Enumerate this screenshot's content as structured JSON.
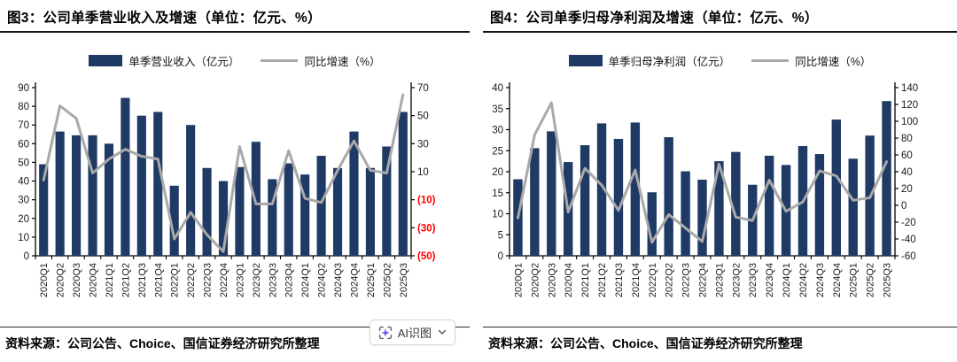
{
  "figures": [
    {
      "source": "资料来源：公司公告、Choice、国信证券经济研究所整理"
    },
    {
      "source": "资料来源：公司公告、Choice、国信证券经济研究所整理"
    }
  ],
  "ai_button": {
    "label": "AI识图",
    "icon": "ai-scan-sparkle-icon",
    "chevron_icon": "chevron-down-icon",
    "accent": "#7a4ff5"
  },
  "colors": {
    "bar": "#1f3a64",
    "line": "#a9a9a9",
    "axis": "#000000",
    "negative_tick_red": "#ff0000",
    "tick_text": "#1a1a1a"
  },
  "chart_data": [
    {
      "type": "bar",
      "subtype": "bar+line-combo",
      "title": "图3：公司单季营业收入及增速（单位：亿元、%）",
      "grid": false,
      "legend_position": "top",
      "categories": [
        "2020Q1",
        "2020Q2",
        "2020Q3",
        "2020Q4",
        "2021Q1",
        "2021Q2",
        "2021Q3",
        "2021Q4",
        "2022Q1",
        "2022Q2",
        "2022Q3",
        "2022Q4",
        "2023Q1",
        "2023Q2",
        "2023Q3",
        "2023Q4",
        "2024Q1",
        "2024Q2",
        "2024Q3",
        "2024Q4",
        "2025Q1",
        "2025Q2",
        "2025Q3"
      ],
      "series": [
        {
          "name": "单季营业收入（亿元）",
          "kind": "bar",
          "axis": "left",
          "values": [
            49,
            66.5,
            64.5,
            64.5,
            60,
            84.5,
            75,
            77,
            37.5,
            70,
            47,
            40,
            47.5,
            61,
            41,
            49.5,
            43.5,
            53.5,
            47,
            66.5,
            47,
            58.5,
            77
          ]
        },
        {
          "name": "同比增速（%）",
          "kind": "line",
          "axis": "right",
          "values": [
            4,
            57,
            48,
            9,
            19,
            26,
            21,
            19,
            -38,
            -19,
            -35,
            -47,
            28,
            -13,
            -13,
            25,
            -9,
            -12,
            11,
            32,
            11,
            9,
            65
          ]
        }
      ],
      "left_axis": {
        "min": 0,
        "max": 90,
        "step": 10,
        "negative_style": "none"
      },
      "right_axis": {
        "min": -50,
        "max": 70,
        "step": 20,
        "negative_style": "parentheses-red"
      }
    },
    {
      "type": "bar",
      "subtype": "bar+line-combo",
      "title": "图4：公司单季归母净利润及增速（单位：亿元、%）",
      "grid": false,
      "legend_position": "top",
      "categories": [
        "2020Q1",
        "2020Q2",
        "2020Q3",
        "2020Q4",
        "2021Q1",
        "2021Q2",
        "2021Q3",
        "2021Q4",
        "2022Q1",
        "2022Q2",
        "2022Q3",
        "2022Q4",
        "2023Q1",
        "2023Q2",
        "2023Q3",
        "2023Q4",
        "2024Q1",
        "2024Q2",
        "2024Q3",
        "2024Q4",
        "2025Q1",
        "2025Q2",
        "2025Q3"
      ],
      "series": [
        {
          "name": "单季归母净利润（亿元）",
          "kind": "bar",
          "axis": "left",
          "values": [
            18.2,
            25.6,
            29.6,
            22.3,
            26.3,
            31.5,
            27.8,
            31.7,
            15.1,
            28.2,
            20.1,
            18.1,
            22.5,
            24.7,
            16.9,
            23.8,
            21.6,
            26.1,
            24.2,
            32.4,
            23.1,
            28.6,
            36.8
          ]
        },
        {
          "name": "同比增速（%）",
          "kind": "line",
          "axis": "right",
          "values": [
            -15,
            84,
            122,
            -8,
            44,
            24,
            -6,
            42,
            -44,
            -11,
            -27,
            -43,
            49,
            -14,
            -18,
            30,
            -7,
            4,
            41,
            35,
            6,
            9,
            52
          ]
        }
      ],
      "left_axis": {
        "min": 0,
        "max": 40,
        "step": 5,
        "negative_style": "none"
      },
      "right_axis": {
        "min": -60,
        "max": 140,
        "step": 20,
        "negative_style": "minus-black"
      }
    }
  ]
}
